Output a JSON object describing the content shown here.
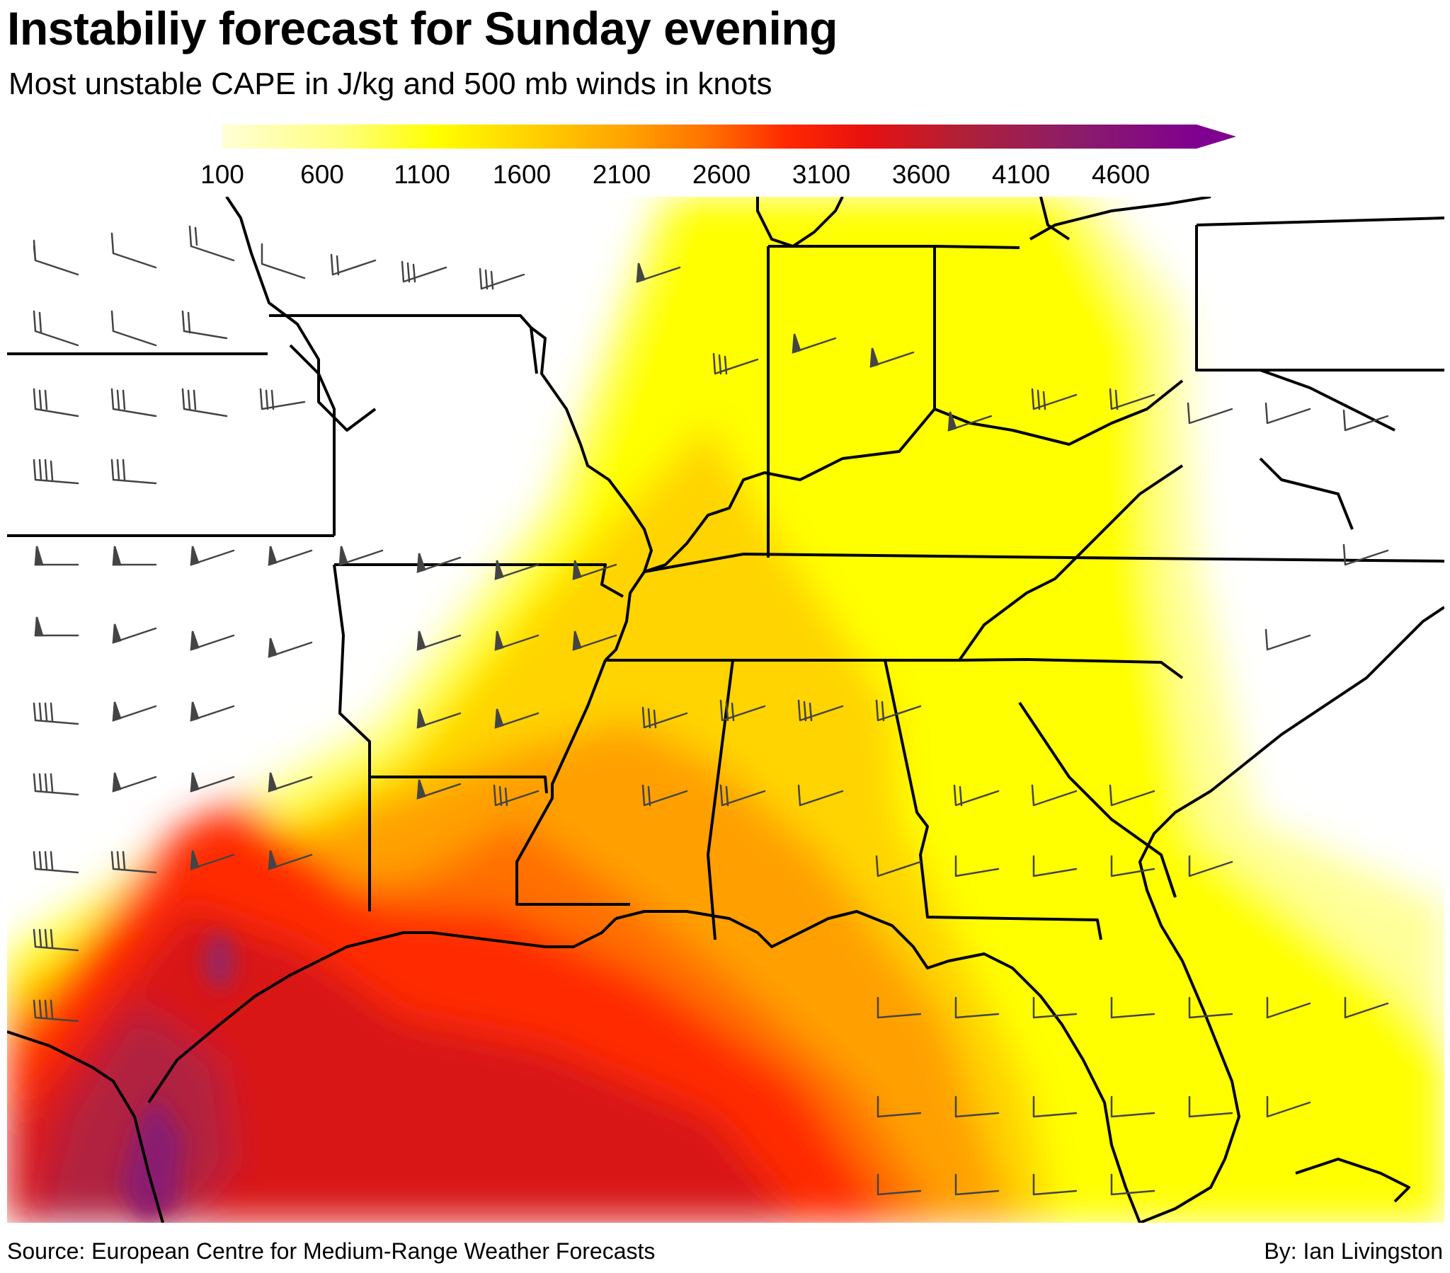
{
  "header": {
    "title": "Instabiliy forecast for Sunday evening",
    "subtitle": "Most unstable CAPE in J/kg and 500 mb winds in knots"
  },
  "legend": {
    "ticks": [
      "100",
      "600",
      "1100",
      "1600",
      "2100",
      "2600",
      "3100",
      "3600",
      "4100",
      "4600"
    ],
    "colors": [
      "#ffffd8",
      "#ffff80",
      "#ffff00",
      "#ffd000",
      "#ffa000",
      "#ff7000",
      "#ff3000",
      "#e81010",
      "#b02038",
      "#8a1c6a",
      "#800090"
    ]
  },
  "footer": {
    "source": "Source: European Centre for Medium-Range Weather Forecasts",
    "byline": "By: Ian Livingston"
  }
}
